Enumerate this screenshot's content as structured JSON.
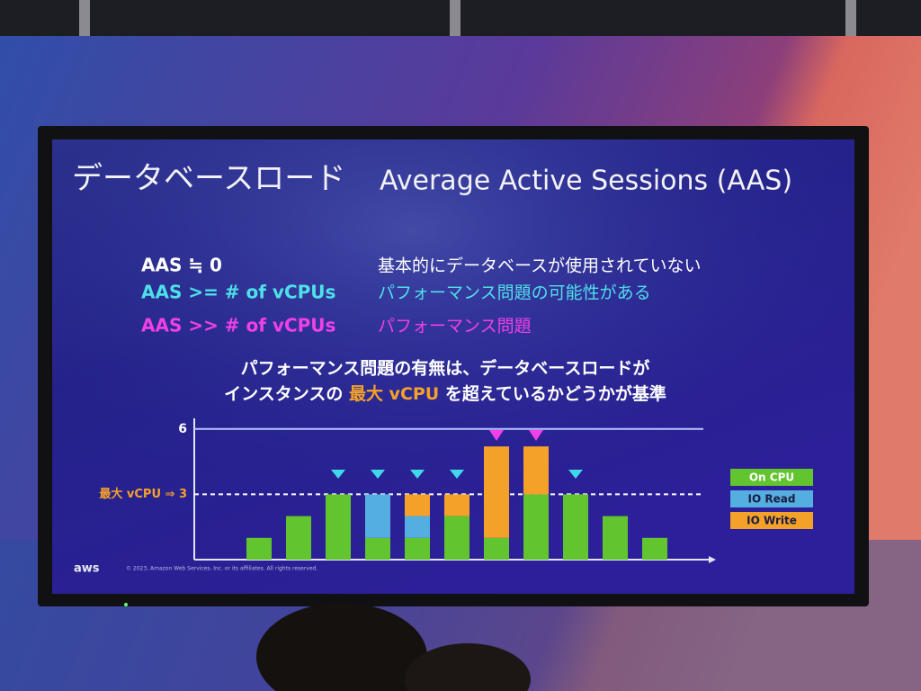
{
  "slide": {
    "title": "データベースロード",
    "title_en": "Average Active Sessions (AAS)",
    "rows": [
      {
        "condition": "AAS ≒ 0",
        "meaning": "基本的にデータベースが使用されていない"
      },
      {
        "condition": "AAS >= # of vCPUs",
        "meaning": "パフォーマンス問題の可能性がある"
      },
      {
        "condition": "AAS >> # of vCPUs",
        "meaning": "パフォーマンス問題"
      }
    ],
    "subtitle_line1": "パフォーマンス問題の有無は、データベースロードが",
    "subtitle_line2": [
      "インスタンスの ",
      "最大 vCPU",
      " を超えているかどうかが基準"
    ],
    "logo": "aws",
    "footer": "© 2023, Amazon Web Services, Inc. or its affiliates. All rights reserved."
  },
  "chart_data": {
    "type": "stacked_bar",
    "categories": [
      null,
      null,
      null,
      null,
      null,
      null,
      null,
      null,
      null,
      null,
      null
    ],
    "series": [
      {
        "name": "On CPU",
        "color": "#62c42e",
        "values": [
          1,
          2,
          3,
          1,
          1,
          2,
          1,
          3,
          3,
          2,
          1
        ]
      },
      {
        "name": "IO Read",
        "color": "#55aee0",
        "values": [
          0,
          0,
          0,
          2,
          1,
          0,
          0,
          0,
          0,
          0,
          0
        ]
      },
      {
        "name": "IO Write",
        "color": "#f4a12a",
        "values": [
          0,
          0,
          0,
          0,
          1,
          1,
          4.2,
          2.2,
          0,
          0,
          0
        ]
      }
    ],
    "ylim": [
      0,
      6.5
    ],
    "yticks": [
      {
        "value": 3,
        "label": "最大 vCPU ⇒ 3"
      },
      6
    ],
    "grid": true,
    "legend": "right"
  }
}
